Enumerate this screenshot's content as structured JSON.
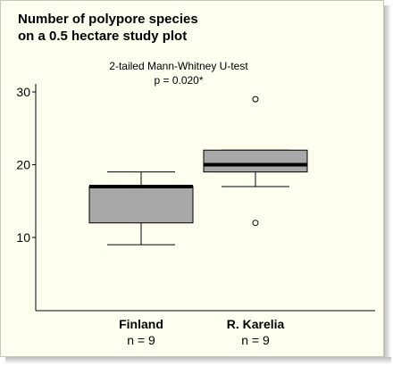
{
  "chart_data": {
    "type": "box",
    "title_lines": [
      "Number of polypore species",
      "on a 0.5 hectare study plot"
    ],
    "annotation_lines": [
      "2-tailed Mann-Whitney U-test",
      "p = 0.020*"
    ],
    "ylim": [
      0,
      31
    ],
    "yticks": [
      10,
      20,
      30
    ],
    "boxes": [
      {
        "name": "Finland",
        "n_label": "n = 9",
        "whisker_low": 9,
        "q1": 12,
        "median": 17,
        "q3": 17,
        "whisker_high": 19,
        "outliers": []
      },
      {
        "name": "R. Karelia",
        "n_label": "n = 9",
        "whisker_low": 17,
        "q1": 19,
        "median": 20,
        "q3": 22,
        "whisker_high": 22,
        "outliers": [
          12,
          29
        ]
      }
    ],
    "colors": {
      "box_fill": "#a8a8a8",
      "background": "#fffff0",
      "line": "#000000"
    }
  }
}
